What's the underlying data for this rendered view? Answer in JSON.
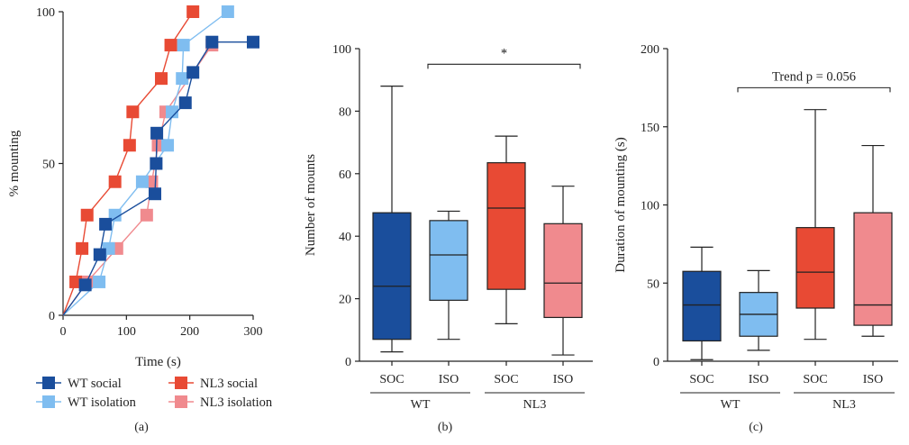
{
  "colors": {
    "wt_social": "#1a4e9c",
    "wt_isolation": "#7fbdf0",
    "nl3_social": "#e84a34",
    "nl3_isolation": "#f08a8e",
    "axis": "#222222"
  },
  "chart_data": [
    {
      "panel": "(a)",
      "type": "line",
      "xlabel": "Time (s)",
      "ylabel": "% mounting",
      "xlim": [
        0,
        300
      ],
      "ylim": [
        0,
        100
      ],
      "xticks": [
        "0",
        "100",
        "200",
        "300"
      ],
      "yticks": [
        "0",
        "50",
        "100"
      ],
      "legend_position": "bottom",
      "series": [
        {
          "name": "WT social",
          "color_key": "wt_social",
          "x": [
            0,
            35,
            58,
            67,
            145,
            147,
            148,
            193,
            205,
            235,
            300
          ],
          "y": [
            0,
            10,
            20,
            30,
            40,
            50,
            60,
            70,
            80,
            90,
            90
          ]
        },
        {
          "name": "WT isolation",
          "color_key": "wt_isolation",
          "x": [
            0,
            57,
            72,
            82,
            125,
            165,
            172,
            188,
            190,
            260
          ],
          "y": [
            0,
            11,
            22,
            33,
            44,
            56,
            67,
            78,
            89,
            100
          ]
        },
        {
          "name": "NL3 social",
          "color_key": "nl3_social",
          "x": [
            0,
            20,
            30,
            38,
            82,
            105,
            110,
            155,
            170,
            205
          ],
          "y": [
            0,
            11,
            22,
            33,
            44,
            56,
            67,
            78,
            89,
            100
          ]
        },
        {
          "name": "NL3 isolation",
          "color_key": "nl3_isolation",
          "x": [
            0,
            38,
            85,
            132,
            140,
            150,
            162,
            235
          ],
          "y": [
            0,
            11,
            22,
            33,
            44,
            56,
            67,
            89
          ]
        }
      ]
    },
    {
      "panel": "(b)",
      "type": "box",
      "ylabel": "Number of mounts",
      "ylim": [
        0,
        100
      ],
      "yticks": [
        "0",
        "20",
        "40",
        "60",
        "80",
        "100"
      ],
      "categories": [
        "SOC",
        "ISO",
        "SOC",
        "ISO"
      ],
      "groups": [
        "WT",
        "NL3"
      ],
      "boxes": [
        {
          "color_key": "wt_social",
          "min": 3,
          "q1": 7,
          "median": 24,
          "q3": 47.5,
          "max": 88
        },
        {
          "color_key": "wt_isolation",
          "min": 7,
          "q1": 19.5,
          "median": 34,
          "q3": 45,
          "max": 48
        },
        {
          "color_key": "nl3_social",
          "min": 12,
          "q1": 23,
          "median": 49,
          "q3": 63.5,
          "max": 72
        },
        {
          "color_key": "nl3_isolation",
          "min": 2,
          "q1": 14,
          "median": 25,
          "q3": 44,
          "max": 56
        }
      ],
      "annotation": {
        "text": "*",
        "from": 1,
        "to": 3,
        "y": 95
      }
    },
    {
      "panel": "(c)",
      "type": "box",
      "ylabel": "Duration of mounting (s)",
      "ylim": [
        0,
        200
      ],
      "yticks": [
        "0",
        "50",
        "100",
        "150",
        "200"
      ],
      "categories": [
        "SOC",
        "ISO",
        "SOC",
        "ISO"
      ],
      "groups": [
        "WT",
        "NL3"
      ],
      "boxes": [
        {
          "color_key": "wt_social",
          "min": 1,
          "q1": 13,
          "median": 36,
          "q3": 57.5,
          "max": 73
        },
        {
          "color_key": "wt_isolation",
          "min": 7,
          "q1": 16,
          "median": 30,
          "q3": 44,
          "max": 58
        },
        {
          "color_key": "nl3_social",
          "min": 14,
          "q1": 34,
          "median": 57,
          "q3": 85.5,
          "max": 161
        },
        {
          "color_key": "nl3_isolation",
          "min": 16,
          "q1": 23,
          "median": 36,
          "q3": 95,
          "max": 138
        }
      ],
      "annotation": {
        "text": "Trend p = 0.056",
        "from": 1,
        "to": 3,
        "y": 175
      }
    }
  ]
}
